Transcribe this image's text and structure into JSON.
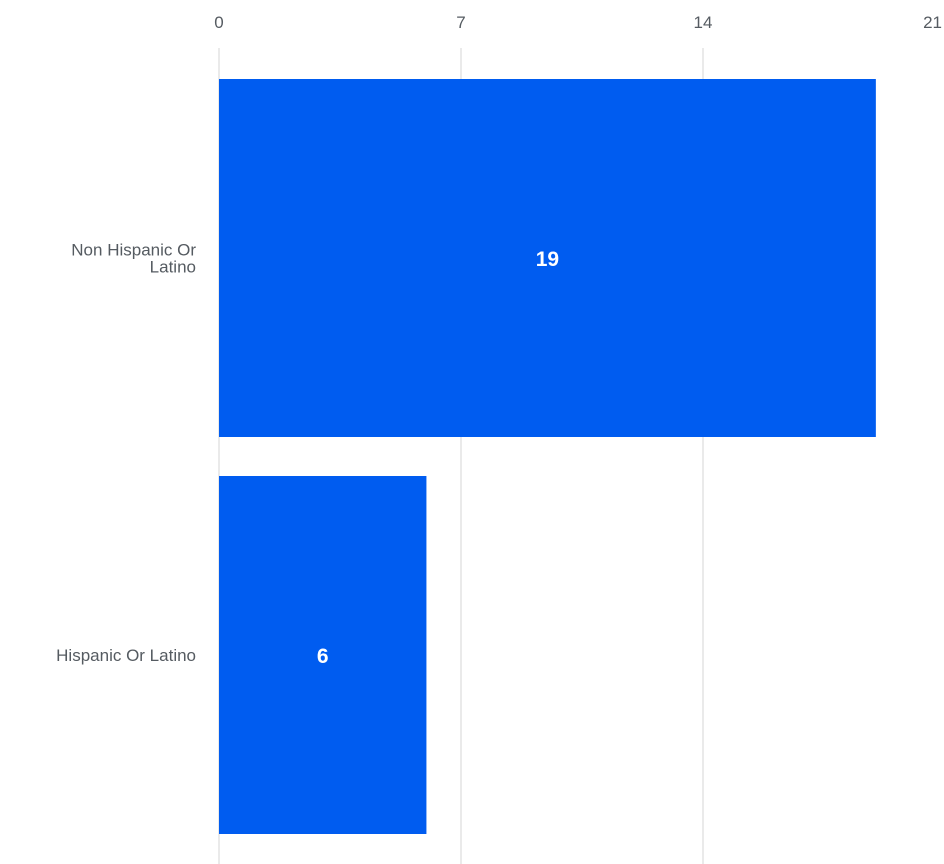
{
  "chart_data": {
    "type": "bar",
    "orientation": "horizontal",
    "categories": [
      "Non Hispanic Or Latino",
      "Hispanic Or Latino"
    ],
    "category_label_lines": [
      [
        "Non Hispanic Or",
        "Latino"
      ],
      [
        "Hispanic Or Latino"
      ]
    ],
    "values": [
      19,
      6
    ],
    "data_labels": [
      "19",
      "6"
    ],
    "xlim": [
      0,
      21
    ],
    "x_ticks": [
      0,
      7,
      14,
      21
    ],
    "x_tick_labels": [
      "0",
      "7",
      "14",
      "21"
    ],
    "x_axis_position": "top",
    "grid": true,
    "legend": "none",
    "title": "",
    "xlabel": "",
    "ylabel": "",
    "bar_color": "#005cf0",
    "grid_color": "#e3e3e3"
  }
}
